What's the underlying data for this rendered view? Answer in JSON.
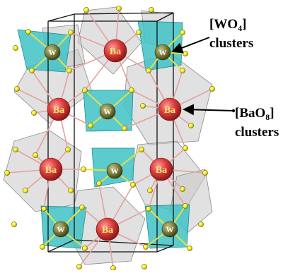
{
  "structure": {
    "atoms": {
      "ba_label": "Ba",
      "w_label": "W",
      "ba_color": "#d93a3a",
      "w_color": "#7a7a3a",
      "o_color": "#f2e600"
    },
    "colors": {
      "wo4_polyhedron": "#3fc2c6",
      "bao8_polyhedron": "#c8c8c8",
      "unit_cell_line": "#111111",
      "bond_ba_o": "#e6a0a0",
      "bond_w_o": "#e8e040"
    }
  },
  "callouts": {
    "wo4": {
      "prefix": "[WO",
      "sub": "4",
      "suffix": "]",
      "line2": "clusters"
    },
    "bao8": {
      "prefix": "[BaO",
      "sub": "8",
      "suffix": "]",
      "line2": "clusters"
    }
  }
}
